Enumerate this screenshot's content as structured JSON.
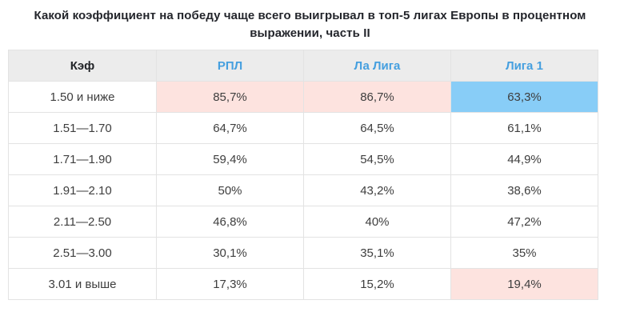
{
  "title": "Какой коэффициент на победу чаще всего выигрывал в топ-5 лигах Европы в процентном выражении, часть II",
  "colors": {
    "title_text": "#23252b",
    "header_bg": "#ececec",
    "header_link": "#459fdf",
    "cell_text": "#3e3e3e",
    "border": "#e3e3e3",
    "pink": "#fde3df",
    "blue": "#88cdf7"
  },
  "chart_data": {
    "type": "table",
    "title": "Какой коэффициент на победу чаще всего выигрывал в топ-5 лигах Европы в процентном выражении, часть II",
    "columns": [
      "Кэф",
      "РПЛ",
      "Ла Лига",
      "Лига 1"
    ],
    "header_styles": [
      "plain",
      "link",
      "link",
      "link"
    ],
    "rows": [
      {
        "cells": [
          "1.50 и ниже",
          "85,7%",
          "86,7%",
          "63,3%"
        ],
        "cell_bg": [
          null,
          "pink",
          "pink",
          "blue"
        ]
      },
      {
        "cells": [
          "1.51—1.70",
          "64,7%",
          "64,5%",
          "61,1%"
        ],
        "cell_bg": [
          null,
          null,
          null,
          null
        ]
      },
      {
        "cells": [
          "1.71—1.90",
          "59,4%",
          "54,5%",
          "44,9%"
        ],
        "cell_bg": [
          null,
          null,
          null,
          null
        ]
      },
      {
        "cells": [
          "1.91—2.10",
          "50%",
          "43,2%",
          "38,6%"
        ],
        "cell_bg": [
          null,
          null,
          null,
          null
        ]
      },
      {
        "cells": [
          "2.11—2.50",
          "46,8%",
          "40%",
          "47,2%"
        ],
        "cell_bg": [
          null,
          null,
          null,
          null
        ]
      },
      {
        "cells": [
          "2.51—3.00",
          "30,1%",
          "35,1%",
          "35%"
        ],
        "cell_bg": [
          null,
          null,
          null,
          null
        ]
      },
      {
        "cells": [
          "3.01 и выше",
          "17,3%",
          "15,2%",
          "19,4%"
        ],
        "cell_bg": [
          null,
          null,
          null,
          "pink"
        ]
      }
    ],
    "legend_note_pink": "highlight-max-value",
    "legend_note_blue": "highlight-selected-value"
  }
}
